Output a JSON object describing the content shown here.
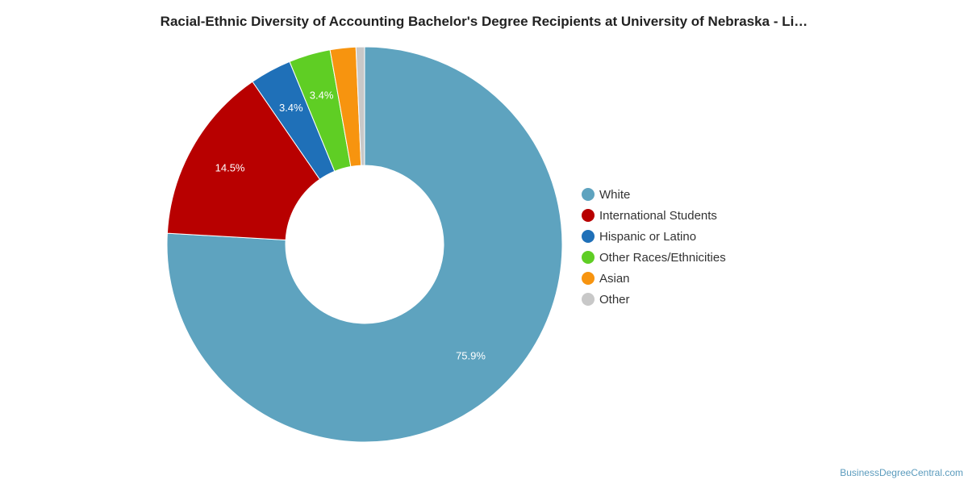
{
  "title": "Racial-Ethnic Diversity of Accounting Bachelor's Degree Recipients at University of Nebraska - Li…",
  "watermark": "BusinessDegreeCentral.com",
  "chart_data": {
    "type": "pie",
    "donut": true,
    "legend_position": "right",
    "slices": [
      {
        "name": "White",
        "value": 75.9,
        "color": "#5ea3bf",
        "label": "75.9%"
      },
      {
        "name": "International Students",
        "value": 14.5,
        "color": "#b80000",
        "label": "14.5%"
      },
      {
        "name": "Hispanic or Latino",
        "value": 3.4,
        "color": "#1f70b8",
        "label": "3.4%"
      },
      {
        "name": "Other Races/Ethnicities",
        "value": 3.4,
        "color": "#5fce24",
        "label": "3.4%"
      },
      {
        "name": "Asian",
        "value": 2.1,
        "color": "#f7940f",
        "label": ""
      },
      {
        "name": "Other",
        "value": 0.7,
        "color": "#c8c8c8",
        "label": ""
      }
    ]
  }
}
